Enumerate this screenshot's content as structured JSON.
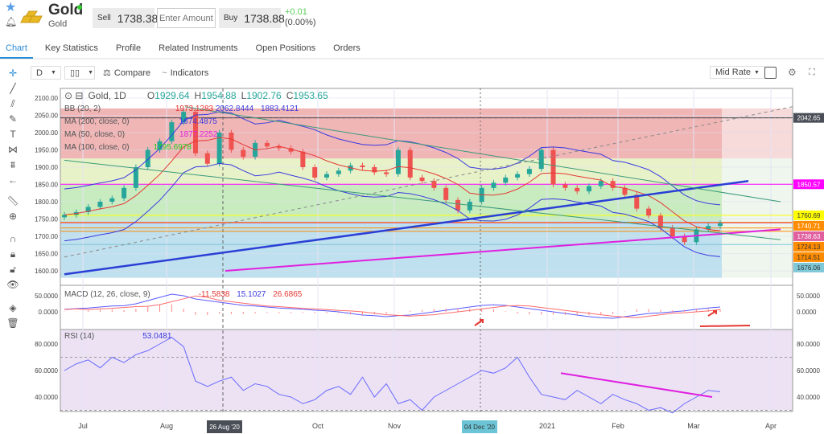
{
  "instrument": {
    "name": "Gold",
    "subtitle": "Gold",
    "sell_label": "Sell",
    "sell": "1738.38",
    "amount_placeholder": "Enter Amount",
    "buy_label": "Buy",
    "buy": "1738.88",
    "change": "+0.01",
    "change_pct": "(0.00%)"
  },
  "tabs": [
    "Chart",
    "Key Statistics",
    "Profile",
    "Related Instruments",
    "Open Positions",
    "Orders"
  ],
  "toolbar": {
    "interval": "D",
    "compare": "Compare",
    "indicators": "Indicators",
    "rate": "Mid Rate"
  },
  "legend": {
    "symbol": "Gold, 1D",
    "o_label": "O",
    "o": "1929.64",
    "h_label": "H",
    "h": "1954.88",
    "l_label": "L",
    "l": "1902.76",
    "c_label": "C",
    "c": "1953.65"
  },
  "indicators": [
    {
      "name": "BB (20, 2)",
      "values": [
        "1973.1283",
        "2062.8444",
        "1883.4121"
      ],
      "colors": [
        "#e53935",
        "#3a3adf",
        "#3a3adf"
      ]
    },
    {
      "name": "MA (200, close, 0)",
      "values": [
        "1674.4875"
      ],
      "colors": [
        "#3a3adf"
      ]
    },
    {
      "name": "MA (50, close, 0)",
      "values": [
        "1877.2252"
      ],
      "colors": [
        "#e020e0"
      ]
    },
    {
      "name": "MA (100, close, 0)",
      "values": [
        "1795.6978"
      ],
      "colors": [
        "#22cc22"
      ]
    }
  ],
  "macd": {
    "name": "MACD (12, 26, close, 9)",
    "values": [
      "-11.5838",
      "15.1027",
      "26.6865"
    ],
    "ticks": [
      "50.0000",
      "0.0000"
    ]
  },
  "rsi": {
    "name": "RSI (14)",
    "value": "53.0481",
    "ticks": [
      "80.0000",
      "60.0000",
      "40.0000"
    ]
  },
  "price_ticks": [
    "2100.00",
    "2050.00",
    "2000.00",
    "1950.00",
    "1900.00",
    "1850.00",
    "1800.00",
    "1750.00",
    "1700.00",
    "1650.00",
    "1600.00"
  ],
  "levels": [
    {
      "v": "2042.65",
      "bg": "#4a4f57",
      "fg": "#fff"
    },
    {
      "v": "1850.57",
      "bg": "#ff00ff",
      "fg": "#fff"
    },
    {
      "v": "1760.69",
      "bg": "#ffff00",
      "fg": "#333"
    },
    {
      "v": "1740.71",
      "bg": "#ff8c00",
      "fg": "#fff"
    },
    {
      "v": "1738.63",
      "bg": "#e060a0",
      "fg": "#fff"
    },
    {
      "v": "1724.13",
      "bg": "#ff8c00",
      "fg": "#333"
    },
    {
      "v": "1714.51",
      "bg": "#ff8c00",
      "fg": "#333"
    },
    {
      "v": "1676.06",
      "bg": "#7ec8d8",
      "fg": "#333"
    }
  ],
  "x_labels": [
    "Jul",
    "Aug",
    "Oct",
    "Nov",
    "2021",
    "Feb",
    "Mar",
    "Apr"
  ],
  "crosshair_labels": [
    "26 Aug '20",
    "04 Dec '20"
  ],
  "colors": {
    "accent": "#2a8bd6",
    "up": "#26a69a",
    "down": "#ef5350"
  }
}
